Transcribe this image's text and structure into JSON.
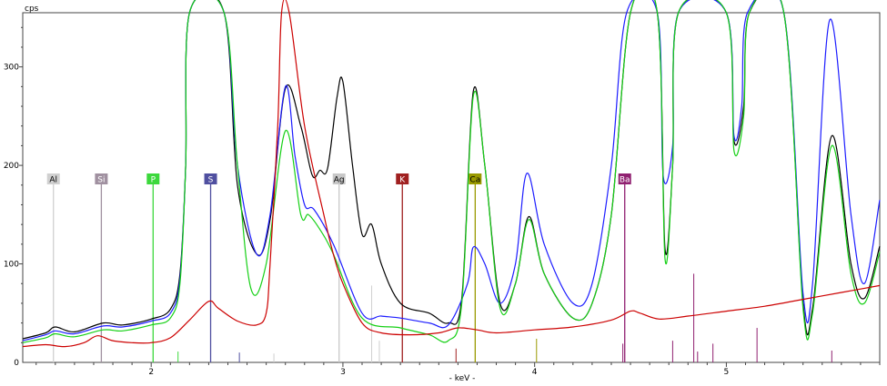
{
  "chart_data": {
    "type": "line",
    "xlabel": "- keV -",
    "ylabel": "cps",
    "xlim": [
      1.33,
      5.8
    ],
    "ylim": [
      0,
      355
    ],
    "x_ticks": [
      "2",
      "3",
      "4",
      "5"
    ],
    "y_ticks": [
      "100",
      "200",
      "300"
    ],
    "x_minor_step": 0.1,
    "grid": false,
    "series": [
      {
        "color": "#000000",
        "points": [
          [
            1.33,
            24
          ],
          [
            1.45,
            30
          ],
          [
            1.5,
            36
          ],
          [
            1.6,
            31
          ],
          [
            1.75,
            40
          ],
          [
            1.85,
            38
          ],
          [
            2.0,
            44
          ],
          [
            2.1,
            54
          ],
          [
            2.15,
            90
          ],
          [
            2.18,
            200
          ],
          [
            2.2,
            355
          ],
          [
            2.38,
            355
          ],
          [
            2.45,
            180
          ],
          [
            2.55,
            110
          ],
          [
            2.62,
            145
          ],
          [
            2.7,
            278
          ],
          [
            2.78,
            240
          ],
          [
            2.84,
            190
          ],
          [
            2.88,
            195
          ],
          [
            2.92,
            197
          ],
          [
            2.97,
            270
          ],
          [
            3.0,
            285
          ],
          [
            3.05,
            200
          ],
          [
            3.1,
            130
          ],
          [
            3.15,
            140
          ],
          [
            3.2,
            100
          ],
          [
            3.3,
            60
          ],
          [
            3.45,
            50
          ],
          [
            3.55,
            40
          ],
          [
            3.62,
            65
          ],
          [
            3.68,
            275
          ],
          [
            3.74,
            200
          ],
          [
            3.82,
            60
          ],
          [
            3.9,
            80
          ],
          [
            3.97,
            148
          ],
          [
            4.05,
            90
          ],
          [
            4.2,
            45
          ],
          [
            4.3,
            60
          ],
          [
            4.4,
            150
          ],
          [
            4.5,
            355
          ],
          [
            4.64,
            355
          ],
          [
            4.68,
            115
          ],
          [
            4.72,
            200
          ],
          [
            4.75,
            355
          ],
          [
            5.0,
            355
          ],
          [
            5.04,
            225
          ],
          [
            5.09,
            260
          ],
          [
            5.12,
            355
          ],
          [
            5.3,
            355
          ],
          [
            5.4,
            60
          ],
          [
            5.45,
            55
          ],
          [
            5.55,
            230
          ],
          [
            5.65,
            100
          ],
          [
            5.72,
            65
          ],
          [
            5.8,
            118
          ]
        ]
      },
      {
        "color": "#1c1cff",
        "points": [
          [
            1.33,
            22
          ],
          [
            1.45,
            28
          ],
          [
            1.5,
            32
          ],
          [
            1.6,
            29
          ],
          [
            1.75,
            37
          ],
          [
            1.85,
            36
          ],
          [
            2.0,
            42
          ],
          [
            2.1,
            50
          ],
          [
            2.15,
            85
          ],
          [
            2.18,
            200
          ],
          [
            2.2,
            355
          ],
          [
            2.38,
            355
          ],
          [
            2.45,
            200
          ],
          [
            2.55,
            110
          ],
          [
            2.62,
            150
          ],
          [
            2.7,
            280
          ],
          [
            2.75,
            210
          ],
          [
            2.8,
            160
          ],
          [
            2.85,
            155
          ],
          [
            2.95,
            120
          ],
          [
            3.1,
            50
          ],
          [
            3.2,
            47
          ],
          [
            3.3,
            45
          ],
          [
            3.45,
            40
          ],
          [
            3.55,
            38
          ],
          [
            3.65,
            80
          ],
          [
            3.68,
            117
          ],
          [
            3.74,
            100
          ],
          [
            3.82,
            60
          ],
          [
            3.9,
            100
          ],
          [
            3.96,
            192
          ],
          [
            4.05,
            120
          ],
          [
            4.2,
            60
          ],
          [
            4.3,
            80
          ],
          [
            4.4,
            200
          ],
          [
            4.48,
            355
          ],
          [
            4.64,
            355
          ],
          [
            4.67,
            190
          ],
          [
            4.72,
            220
          ],
          [
            4.75,
            355
          ],
          [
            5.0,
            355
          ],
          [
            5.04,
            230
          ],
          [
            5.08,
            260
          ],
          [
            5.11,
            355
          ],
          [
            5.3,
            355
          ],
          [
            5.4,
            70
          ],
          [
            5.45,
            80
          ],
          [
            5.54,
            348
          ],
          [
            5.65,
            150
          ],
          [
            5.72,
            80
          ],
          [
            5.8,
            165
          ]
        ]
      },
      {
        "color": "#16d016",
        "points": [
          [
            1.33,
            20
          ],
          [
            1.45,
            25
          ],
          [
            1.5,
            29
          ],
          [
            1.6,
            26
          ],
          [
            1.75,
            33
          ],
          [
            1.85,
            32
          ],
          [
            2.0,
            38
          ],
          [
            2.1,
            45
          ],
          [
            2.15,
            80
          ],
          [
            2.18,
            200
          ],
          [
            2.2,
            355
          ],
          [
            2.38,
            355
          ],
          [
            2.45,
            200
          ],
          [
            2.52,
            75
          ],
          [
            2.6,
            100
          ],
          [
            2.7,
            235
          ],
          [
            2.78,
            150
          ],
          [
            2.82,
            150
          ],
          [
            2.88,
            135
          ],
          [
            2.95,
            110
          ],
          [
            3.1,
            45
          ],
          [
            3.3,
            35
          ],
          [
            3.45,
            28
          ],
          [
            3.55,
            22
          ],
          [
            3.62,
            60
          ],
          [
            3.68,
            270
          ],
          [
            3.74,
            200
          ],
          [
            3.82,
            55
          ],
          [
            3.9,
            80
          ],
          [
            3.97,
            145
          ],
          [
            4.05,
            90
          ],
          [
            4.2,
            45
          ],
          [
            4.3,
            60
          ],
          [
            4.4,
            150
          ],
          [
            4.5,
            355
          ],
          [
            4.64,
            355
          ],
          [
            4.68,
            105
          ],
          [
            4.72,
            200
          ],
          [
            4.75,
            355
          ],
          [
            5.0,
            355
          ],
          [
            5.04,
            215
          ],
          [
            5.09,
            250
          ],
          [
            5.12,
            355
          ],
          [
            5.3,
            355
          ],
          [
            5.4,
            55
          ],
          [
            5.45,
            50
          ],
          [
            5.55,
            220
          ],
          [
            5.65,
            90
          ],
          [
            5.72,
            60
          ],
          [
            5.8,
            112
          ]
        ]
      },
      {
        "color": "#cc0000",
        "points": [
          [
            1.33,
            16
          ],
          [
            1.45,
            18
          ],
          [
            1.55,
            16
          ],
          [
            1.65,
            20
          ],
          [
            1.72,
            27
          ],
          [
            1.8,
            22
          ],
          [
            1.9,
            20
          ],
          [
            2.0,
            20
          ],
          [
            2.1,
            25
          ],
          [
            2.2,
            43
          ],
          [
            2.3,
            62
          ],
          [
            2.35,
            55
          ],
          [
            2.45,
            42
          ],
          [
            2.55,
            38
          ],
          [
            2.6,
            50
          ],
          [
            2.62,
            100
          ],
          [
            2.66,
            240
          ],
          [
            2.68,
            355
          ],
          [
            2.72,
            355
          ],
          [
            2.8,
            240
          ],
          [
            2.9,
            150
          ],
          [
            2.95,
            110
          ],
          [
            3.0,
            80
          ],
          [
            3.1,
            40
          ],
          [
            3.2,
            30
          ],
          [
            3.35,
            28
          ],
          [
            3.5,
            30
          ],
          [
            3.6,
            35
          ],
          [
            3.7,
            33
          ],
          [
            3.8,
            30
          ],
          [
            4.0,
            33
          ],
          [
            4.2,
            36
          ],
          [
            4.4,
            43
          ],
          [
            4.5,
            52
          ],
          [
            4.55,
            50
          ],
          [
            4.65,
            44
          ],
          [
            4.8,
            47
          ],
          [
            5.0,
            52
          ],
          [
            5.2,
            57
          ],
          [
            5.4,
            64
          ],
          [
            5.6,
            71
          ],
          [
            5.8,
            78
          ]
        ]
      }
    ],
    "element_markers": [
      {
        "label": "Al",
        "x": 1.49,
        "color": "#d0d0d0",
        "text_color": "#000000"
      },
      {
        "label": "Si",
        "x": 1.74,
        "color": "#a090a0",
        "text_color": "#ffffff"
      },
      {
        "label": "P",
        "x": 2.01,
        "color": "#3cd83c",
        "text_color": "#ffffff"
      },
      {
        "label": "S",
        "x": 2.31,
        "color": "#5050a0",
        "text_color": "#ffffff"
      },
      {
        "label": "Ag",
        "x": 2.98,
        "color": "#c8c8c8",
        "text_color": "#000000"
      },
      {
        "label": "K",
        "x": 3.31,
        "color": "#a02020",
        "text_color": "#ffffff"
      },
      {
        "label": "Ca",
        "x": 3.69,
        "color": "#9a9a00",
        "text_color": "#000000"
      },
      {
        "label": "Ba",
        "x": 4.47,
        "color": "#902070",
        "text_color": "#ffffff"
      }
    ],
    "minor_lines": [
      {
        "x": 2.14,
        "h": 11,
        "color": "#3cd83c"
      },
      {
        "x": 2.46,
        "h": 10,
        "color": "#5050a0"
      },
      {
        "x": 2.64,
        "h": 9,
        "color": "#d0d0d0"
      },
      {
        "x": 3.15,
        "h": 78,
        "color": "#d0d0d0"
      },
      {
        "x": 3.19,
        "h": 22,
        "color": "#d0d0d0"
      },
      {
        "x": 3.59,
        "h": 14,
        "color": "#a02020"
      },
      {
        "x": 4.01,
        "h": 24,
        "color": "#9a9a00"
      },
      {
        "x": 4.46,
        "h": 19,
        "color": "#902070"
      },
      {
        "x": 4.72,
        "h": 22,
        "color": "#902070"
      },
      {
        "x": 4.83,
        "h": 90,
        "color": "#902070"
      },
      {
        "x": 4.85,
        "h": 11,
        "color": "#902070"
      },
      {
        "x": 4.93,
        "h": 19,
        "color": "#902070"
      },
      {
        "x": 5.16,
        "h": 35,
        "color": "#902070"
      },
      {
        "x": 5.55,
        "h": 12,
        "color": "#902070"
      }
    ]
  }
}
